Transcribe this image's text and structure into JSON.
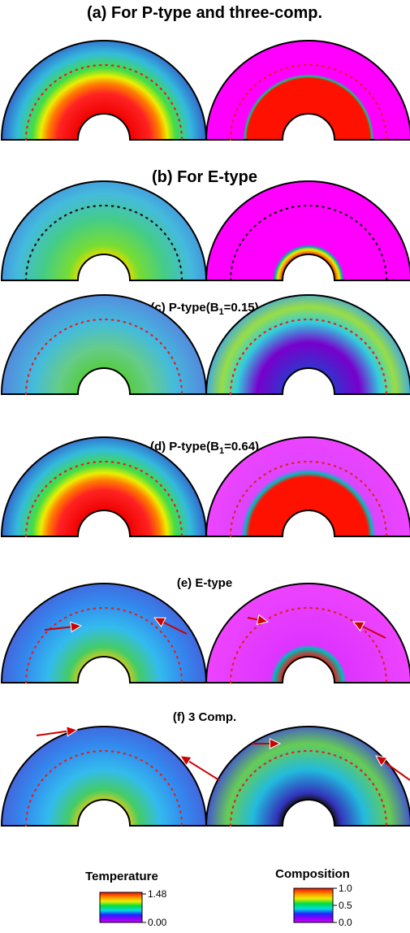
{
  "panels": [
    {
      "title": {
        "text": "(a) For P-type and three-comp."
      }
    },
    {
      "title": {
        "text": "(b) For E-type"
      }
    },
    {
      "title": {
        "prefix": "(c) P-type(B",
        "sub": "1",
        "suffix": "=0.15)"
      }
    },
    {
      "title": {
        "prefix": "(d) P-type(B",
        "sub": "1",
        "suffix": "=0.64)"
      }
    },
    {
      "title": {
        "text": "(e) E-type"
      }
    },
    {
      "title": {
        "text": "(f) 3 Comp."
      }
    }
  ],
  "colorbars": [
    {
      "label": "Temperature",
      "ticks": [
        "1.48",
        "0.00"
      ]
    },
    {
      "label": "Composition",
      "ticks": [
        "1.0",
        "0.5",
        "0.0"
      ]
    }
  ]
}
